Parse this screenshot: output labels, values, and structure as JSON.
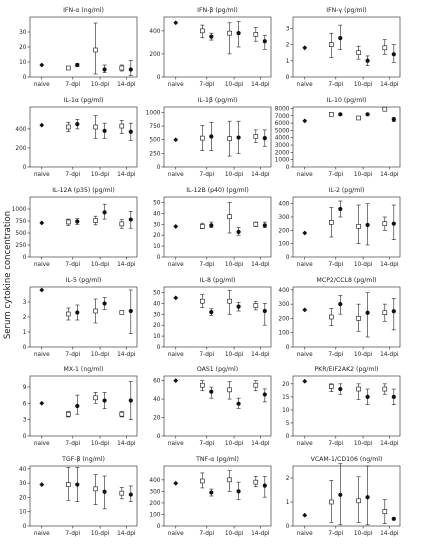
{
  "figure": {
    "ylabel": "Serum cytokine concentration",
    "categories": [
      "naive",
      "7-dpi",
      "10-dpi",
      "14-dpi"
    ]
  },
  "chart_data": [
    {
      "type": "scatter",
      "title": "IFN-α (ng/ml)",
      "ylim": [
        0,
        40
      ],
      "yticks": [
        0,
        10,
        20,
        30
      ],
      "naive": 8,
      "series": [
        {
          "name": "open",
          "style": "open-square",
          "values": [
            6,
            18,
            6
          ],
          "err_low": [
            5,
            2,
            4
          ],
          "err_high": [
            7,
            36,
            8
          ]
        },
        {
          "name": "filled",
          "style": "filled-circle",
          "values": [
            8,
            5,
            5
          ],
          "err_low": [
            7,
            3,
            1
          ],
          "err_high": [
            9,
            8,
            11
          ]
        }
      ]
    },
    {
      "type": "scatter",
      "title": "IFN-β (pg/ml)",
      "ylim": [
        0,
        520
      ],
      "yticks": [
        0,
        200,
        400
      ],
      "naive": 470,
      "series": [
        {
          "name": "open",
          "style": "open-square",
          "values": [
            400,
            380,
            370
          ],
          "err_low": [
            340,
            200,
            310
          ],
          "err_high": [
            450,
            470,
            430
          ]
        },
        {
          "name": "filled",
          "style": "filled-circle",
          "values": [
            350,
            380,
            310
          ],
          "err_low": [
            320,
            260,
            240
          ],
          "err_high": [
            380,
            480,
            360
          ]
        }
      ]
    },
    {
      "type": "scatter",
      "title": "IFN-γ (pg/ml)",
      "ylim": [
        0,
        3.7
      ],
      "yticks": [
        0,
        1,
        2,
        3
      ],
      "naive": 1.8,
      "series": [
        {
          "name": "open",
          "style": "open-square",
          "values": [
            2.0,
            1.5,
            1.8
          ],
          "err_low": [
            1.2,
            1.1,
            1.4
          ],
          "err_high": [
            2.7,
            1.9,
            2.3
          ]
        },
        {
          "name": "filled",
          "style": "filled-circle",
          "values": [
            2.4,
            1.0,
            1.4
          ],
          "err_low": [
            1.7,
            0.7,
            0.9
          ],
          "err_high": [
            3.2,
            1.3,
            2.0
          ]
        }
      ]
    },
    {
      "type": "scatter",
      "title": "IL-1α (pg/ml)",
      "ylim": [
        0,
        630
      ],
      "yticks": [
        0,
        200,
        400
      ],
      "naive": 440,
      "series": [
        {
          "name": "open",
          "style": "open-square",
          "values": [
            420,
            420,
            430
          ],
          "err_low": [
            370,
            300,
            350
          ],
          "err_high": [
            470,
            540,
            490
          ]
        },
        {
          "name": "filled",
          "style": "filled-circle",
          "values": [
            450,
            380,
            370
          ],
          "err_low": [
            400,
            300,
            280
          ],
          "err_high": [
            500,
            460,
            460
          ]
        }
      ]
    },
    {
      "type": "scatter",
      "title": "IL-1β (pg/ml)",
      "ylim": [
        0,
        1100
      ],
      "yticks": [
        0,
        250,
        500,
        750,
        1000
      ],
      "naive": 500,
      "series": [
        {
          "name": "open",
          "style": "open-square",
          "values": [
            530,
            520,
            560
          ],
          "err_low": [
            300,
            200,
            450
          ],
          "err_high": [
            760,
            840,
            680
          ]
        },
        {
          "name": "filled",
          "style": "filled-circle",
          "values": [
            560,
            540,
            530
          ],
          "err_low": [
            300,
            250,
            380
          ],
          "err_high": [
            820,
            840,
            680
          ]
        }
      ]
    },
    {
      "type": "scatter",
      "title": "IL-10 (pg/ml)",
      "ylim": [
        0,
        8200
      ],
      "yticks": [
        0,
        1000,
        2000,
        3000,
        4000,
        5000,
        6000,
        7000,
        8000
      ],
      "naive": 6300,
      "series": [
        {
          "name": "open",
          "style": "open-square",
          "values": [
            7200,
            6700,
            7900
          ],
          "err_low": [
            7100,
            6600,
            7800
          ],
          "err_high": [
            7300,
            6800,
            8000
          ]
        },
        {
          "name": "filled",
          "style": "filled-circle",
          "values": [
            7200,
            7200,
            6500
          ],
          "err_low": [
            7100,
            7100,
            6200
          ],
          "err_high": [
            7300,
            7300,
            6800
          ]
        }
      ]
    },
    {
      "type": "scatter",
      "title": "IL-12A (p35) (pg/ml)",
      "ylim": [
        0,
        1250
      ],
      "yticks": [
        0,
        250,
        500,
        750,
        1000
      ],
      "naive": 710,
      "series": [
        {
          "name": "open",
          "style": "open-square",
          "values": [
            730,
            760,
            690
          ],
          "err_low": [
            660,
            670,
            600
          ],
          "err_high": [
            790,
            850,
            780
          ]
        },
        {
          "name": "filled",
          "style": "filled-circle",
          "values": [
            740,
            930,
            780
          ],
          "err_low": [
            680,
            790,
            600
          ],
          "err_high": [
            800,
            1100,
            950
          ]
        }
      ]
    },
    {
      "type": "scatter",
      "title": "IL-12B (p40) (pg/ml)",
      "ylim": [
        0,
        55
      ],
      "yticks": [
        0,
        10,
        20,
        30,
        40,
        50
      ],
      "naive": 28,
      "series": [
        {
          "name": "open",
          "style": "open-square",
          "values": [
            28,
            37,
            30
          ],
          "err_low": [
            26,
            22,
            28
          ],
          "err_high": [
            31,
            50,
            32
          ]
        },
        {
          "name": "filled",
          "style": "filled-circle",
          "values": [
            29,
            23,
            29
          ],
          "err_low": [
            27,
            20,
            27
          ],
          "err_high": [
            32,
            27,
            32
          ]
        }
      ]
    },
    {
      "type": "scatter",
      "title": "IL-2 (pg/ml)",
      "ylim": [
        0,
        450
      ],
      "yticks": [
        0,
        100,
        200,
        300,
        400
      ],
      "naive": 180,
      "series": [
        {
          "name": "open",
          "style": "open-square",
          "values": [
            260,
            230,
            250
          ],
          "err_low": [
            150,
            100,
            200
          ],
          "err_high": [
            370,
            390,
            300
          ]
        },
        {
          "name": "filled",
          "style": "filled-circle",
          "values": [
            360,
            240,
            250
          ],
          "err_low": [
            300,
            90,
            130
          ],
          "err_high": [
            420,
            400,
            390
          ]
        }
      ]
    },
    {
      "type": "scatter",
      "title": "IL-5 (pg/ml)",
      "ylim": [
        0,
        4
      ],
      "yticks": [
        0,
        1,
        2,
        3
      ],
      "naive": 3.8,
      "series": [
        {
          "name": "open",
          "style": "open-square",
          "values": [
            2.2,
            2.4,
            2.3
          ],
          "err_low": [
            1.8,
            1.6,
            2.2
          ],
          "err_high": [
            2.6,
            3.2,
            2.4
          ]
        },
        {
          "name": "filled",
          "style": "filled-circle",
          "values": [
            2.3,
            2.9,
            2.4
          ],
          "err_low": [
            1.8,
            2.5,
            0.9
          ],
          "err_high": [
            2.8,
            3.3,
            3.8
          ]
        }
      ]
    },
    {
      "type": "scatter",
      "title": "IL-8 (pg/ml)",
      "ylim": [
        0,
        55
      ],
      "yticks": [
        0,
        10,
        20,
        30,
        40,
        50
      ],
      "naive": 45,
      "series": [
        {
          "name": "open",
          "style": "open-square",
          "values": [
            42,
            42,
            38
          ],
          "err_low": [
            36,
            30,
            34
          ],
          "err_high": [
            48,
            52,
            42
          ]
        },
        {
          "name": "filled",
          "style": "filled-circle",
          "values": [
            32,
            37,
            33
          ],
          "err_low": [
            29,
            33,
            20
          ],
          "err_high": [
            35,
            41,
            40
          ]
        }
      ]
    },
    {
      "type": "scatter",
      "title": "MCP2/CCL8 (pg/ml)",
      "ylim": [
        0,
        420
      ],
      "yticks": [
        0,
        100,
        200,
        300,
        400
      ],
      "naive": 260,
      "series": [
        {
          "name": "open",
          "style": "open-square",
          "values": [
            210,
            200,
            240
          ],
          "err_low": [
            150,
            110,
            180
          ],
          "err_high": [
            270,
            300,
            300
          ]
        },
        {
          "name": "filled",
          "style": "filled-circle",
          "values": [
            300,
            240,
            250
          ],
          "err_low": [
            230,
            70,
            120
          ],
          "err_high": [
            360,
            380,
            340
          ]
        }
      ]
    },
    {
      "type": "scatter",
      "title": "MX-1 (ng/ml)",
      "ylim": [
        0,
        11
      ],
      "yticks": [
        0,
        3,
        6,
        9
      ],
      "naive": 6,
      "series": [
        {
          "name": "open",
          "style": "open-square",
          "values": [
            4,
            7,
            4
          ],
          "err_low": [
            3.5,
            6,
            3.5
          ],
          "err_high": [
            4.5,
            8,
            4.5
          ]
        },
        {
          "name": "filled",
          "style": "filled-circle",
          "values": [
            5.5,
            6.5,
            6.5
          ],
          "err_low": [
            4,
            5,
            3
          ],
          "err_high": [
            7.5,
            8,
            10
          ]
        }
      ]
    },
    {
      "type": "scatter",
      "title": "OAS1 (pg/ml)",
      "ylim": [
        0,
        65
      ],
      "yticks": [
        0,
        20,
        40,
        60
      ],
      "naive": 60,
      "series": [
        {
          "name": "open",
          "style": "open-square",
          "values": [
            55,
            50,
            55
          ],
          "err_low": [
            49,
            40,
            49
          ],
          "err_high": [
            60,
            59,
            60
          ]
        },
        {
          "name": "filled",
          "style": "filled-circle",
          "values": [
            48,
            35,
            45
          ],
          "err_low": [
            41,
            30,
            37
          ],
          "err_high": [
            53,
            41,
            51
          ]
        }
      ]
    },
    {
      "type": "scatter",
      "title": "PKR/EIF2AK2 (pg/ml)",
      "ylim": [
        0,
        23
      ],
      "yticks": [
        0,
        5,
        10,
        15,
        20
      ],
      "naive": 21,
      "series": [
        {
          "name": "open",
          "style": "open-square",
          "values": [
            19,
            18,
            18
          ],
          "err_low": [
            17,
            14,
            16
          ],
          "err_high": [
            20,
            20,
            20
          ]
        },
        {
          "name": "filled",
          "style": "filled-circle",
          "values": [
            18,
            15,
            15
          ],
          "err_low": [
            16,
            12,
            12
          ],
          "err_high": [
            20,
            18,
            18
          ]
        }
      ]
    },
    {
      "type": "scatter",
      "title": "TGF-β (ng/ml)",
      "ylim": [
        0,
        42
      ],
      "yticks": [
        0,
        10,
        20,
        30,
        40
      ],
      "naive": 29,
      "series": [
        {
          "name": "open",
          "style": "open-square",
          "values": [
            29,
            26,
            23
          ],
          "err_low": [
            18,
            15,
            19
          ],
          "err_high": [
            41,
            36,
            27
          ]
        },
        {
          "name": "filled",
          "style": "filled-circle",
          "values": [
            29,
            24,
            22
          ],
          "err_low": [
            17,
            12,
            17
          ],
          "err_high": [
            41,
            35,
            28
          ]
        }
      ]
    },
    {
      "type": "scatter",
      "title": "TNF-α (pg/ml)",
      "ylim": [
        0,
        520
      ],
      "yticks": [
        0,
        100,
        200,
        300,
        400
      ],
      "naive": 370,
      "series": [
        {
          "name": "open",
          "style": "open-square",
          "values": [
            390,
            400,
            380
          ],
          "err_low": [
            330,
            300,
            340
          ],
          "err_high": [
            460,
            480,
            430
          ]
        },
        {
          "name": "filled",
          "style": "filled-circle",
          "values": [
            290,
            300,
            350
          ],
          "err_low": [
            260,
            230,
            250
          ],
          "err_high": [
            320,
            380,
            430
          ]
        }
      ]
    },
    {
      "type": "scatter",
      "title": "VCAM-1/CD106 (ng/ml)",
      "ylim": [
        0,
        2.5
      ],
      "yticks": [
        0,
        1,
        2
      ],
      "naive": 0.45,
      "series": [
        {
          "name": "open",
          "style": "open-square",
          "values": [
            1.0,
            1.05,
            0.6
          ],
          "err_low": [
            0.15,
            0.15,
            0.1
          ],
          "err_high": [
            1.9,
            2.05,
            1.1
          ]
        },
        {
          "name": "filled",
          "style": "filled-circle",
          "values": [
            1.3,
            1.2,
            0.3
          ],
          "err_low": [
            0.05,
            0.05,
            0.25
          ],
          "err_high": [
            2.6,
            2.5,
            0.35
          ]
        }
      ]
    }
  ]
}
